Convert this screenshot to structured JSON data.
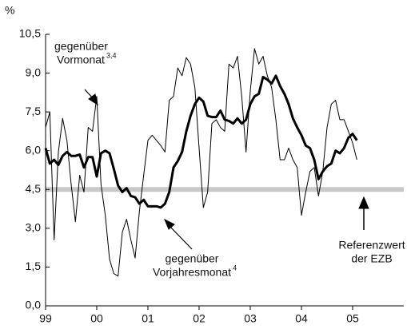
{
  "chart_data": {
    "type": "line",
    "y_label": "%",
    "xlim": [
      1999,
      2006
    ],
    "xticks": [
      {
        "value": 1999,
        "label": "99"
      },
      {
        "value": 2000,
        "label": "00"
      },
      {
        "value": 2001,
        "label": "01"
      },
      {
        "value": 2002,
        "label": "02"
      },
      {
        "value": 2003,
        "label": "03"
      },
      {
        "value": 2004,
        "label": "04"
      },
      {
        "value": 2005,
        "label": "05"
      }
    ],
    "ylim": [
      0,
      10.5
    ],
    "yticks": [
      {
        "value": 0,
        "label": "0,0"
      },
      {
        "value": 1.5,
        "label": "1,5"
      },
      {
        "value": 3,
        "label": "3,0"
      },
      {
        "value": 4.5,
        "label": "4,5"
      },
      {
        "value": 6,
        "label": "6,0"
      },
      {
        "value": 7.5,
        "label": "7,5"
      },
      {
        "value": 9,
        "label": "9,0"
      },
      {
        "value": 10.5,
        "label": "10,5"
      }
    ],
    "reference_value": 4.5,
    "reference_color": "#c8c8c8",
    "annotations": [
      {
        "lines": [
          "gegenüber",
          "Vormonat"
        ],
        "sup": "3,4"
      },
      {
        "lines": [
          "gegenüber",
          "Vorjahresmonat"
        ],
        "sup": "4"
      },
      {
        "lines": [
          "Referenzwert",
          "der EZB"
        ]
      }
    ],
    "x": [
      1999,
      1999.083,
      1999.167,
      1999.25,
      1999.333,
      1999.417,
      1999.5,
      1999.583,
      1999.667,
      1999.75,
      1999.833,
      1999.917,
      2000,
      2000.083,
      2000.167,
      2000.25,
      2000.333,
      2000.417,
      2000.5,
      2000.583,
      2000.667,
      2000.75,
      2000.833,
      2000.917,
      2001,
      2001.083,
      2001.167,
      2001.25,
      2001.333,
      2001.417,
      2001.5,
      2001.583,
      2001.667,
      2001.75,
      2001.833,
      2001.917,
      2002,
      2002.083,
      2002.167,
      2002.25,
      2002.333,
      2002.417,
      2002.5,
      2002.583,
      2002.667,
      2002.75,
      2002.833,
      2002.917,
      2003,
      2003.083,
      2003.167,
      2003.25,
      2003.333,
      2003.417,
      2003.5,
      2003.583,
      2003.667,
      2003.75,
      2003.833,
      2003.917,
      2004,
      2004.083,
      2004.167,
      2004.25,
      2004.333,
      2004.417,
      2004.5,
      2004.583,
      2004.667,
      2004.75,
      2004.833,
      2004.917,
      2005,
      2005.083
    ],
    "series": [
      {
        "color": "#000000",
        "width": 1,
        "values": [
          6.9,
          7.5,
          2.55,
          5.95,
          7.25,
          6.4,
          4.7,
          3.25,
          5.05,
          4.4,
          6.9,
          6.75,
          8.1,
          4.7,
          3.5,
          1.8,
          1.25,
          1.15,
          2.85,
          3.35,
          2.55,
          1.85,
          3.65,
          5.05,
          6.4,
          6.6,
          6.4,
          6.2,
          5.95,
          7.95,
          8.1,
          9.2,
          8.9,
          9.6,
          9.35,
          8.45,
          6.1,
          3.8,
          4.4,
          7.05,
          7.2,
          6.9,
          6.75,
          9.35,
          9.2,
          9.65,
          8.1,
          5.95,
          8.3,
          9.95,
          9.35,
          9.65,
          8.9,
          8.45,
          7.2,
          5.65,
          5.65,
          6.1,
          5.65,
          5.35,
          3.5,
          4.4,
          5.2,
          5.35,
          4.25,
          5.2,
          6.9,
          7.8,
          7.95,
          7.2,
          7.2,
          6.75,
          6.3,
          5.65
        ]
      },
      {
        "color": "#000000",
        "width": 3,
        "values": [
          6.1,
          5.5,
          5.65,
          5.45,
          5.8,
          5.95,
          5.8,
          5.8,
          5.85,
          5.35,
          5.75,
          5.75,
          5.0,
          5.9,
          6.0,
          5.9,
          5.3,
          4.65,
          4.4,
          4.55,
          4.25,
          4.2,
          3.95,
          4.1,
          3.85,
          3.85,
          3.85,
          3.8,
          3.95,
          4.4,
          5.35,
          5.6,
          5.95,
          6.75,
          7.35,
          7.8,
          8.05,
          7.9,
          7.35,
          7.3,
          7.3,
          7.55,
          7.2,
          7.15,
          7.05,
          7.25,
          7.05,
          7.2,
          7.8,
          8.1,
          8.2,
          8.85,
          8.75,
          8.6,
          8.9,
          8.5,
          8.2,
          7.8,
          7.25,
          6.9,
          6.6,
          6.2,
          6.1,
          5.65,
          4.9,
          5.2,
          5.4,
          5.5,
          6.0,
          5.9,
          6.1,
          6.5,
          6.65,
          6.4
        ]
      }
    ]
  }
}
